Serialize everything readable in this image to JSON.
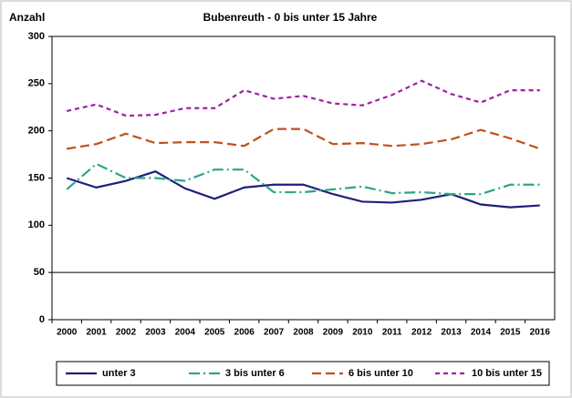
{
  "chart_data": {
    "type": "line",
    "title": "Bubenreuth - 0 bis unter 15 Jahre",
    "y_label": "Anzahl",
    "categories": [
      "2000",
      "2001",
      "2002",
      "2003",
      "2004",
      "2005",
      "2006",
      "2007",
      "2008",
      "2009",
      "2010",
      "2011",
      "2012",
      "2013",
      "2014",
      "2015",
      "2016"
    ],
    "series": [
      {
        "name": "unter 3",
        "color": "#1f1f7a",
        "dash": "solid",
        "values": [
          150,
          140,
          147,
          157,
          139,
          128,
          140,
          143,
          143,
          133,
          125,
          124,
          127,
          133,
          122,
          119,
          121
        ]
      },
      {
        "name": "3 bis unter 6",
        "color": "#2ba58a",
        "dash": "dash-dot",
        "values": [
          138,
          165,
          150,
          150,
          147,
          159,
          159,
          135,
          135,
          138,
          141,
          134,
          135,
          133,
          133,
          143,
          143
        ]
      },
      {
        "name": "6 bis unter 10",
        "color": "#c0501f",
        "dash": "long-dash",
        "values": [
          181,
          186,
          197,
          187,
          188,
          188,
          184,
          202,
          202,
          186,
          187,
          184,
          186,
          191,
          201,
          192,
          181
        ]
      },
      {
        "name": "10 bis unter 15",
        "color": "#a020a0",
        "dash": "short-dash",
        "values": [
          221,
          228,
          216,
          217,
          224,
          224,
          243,
          234,
          237,
          229,
          227,
          238,
          253,
          239,
          230,
          243,
          243
        ]
      }
    ],
    "ylim": [
      0,
      300
    ],
    "yticks": [
      0,
      50,
      100,
      150,
      200,
      250,
      300
    ],
    "reference_line": 50,
    "legend": "bottom"
  }
}
